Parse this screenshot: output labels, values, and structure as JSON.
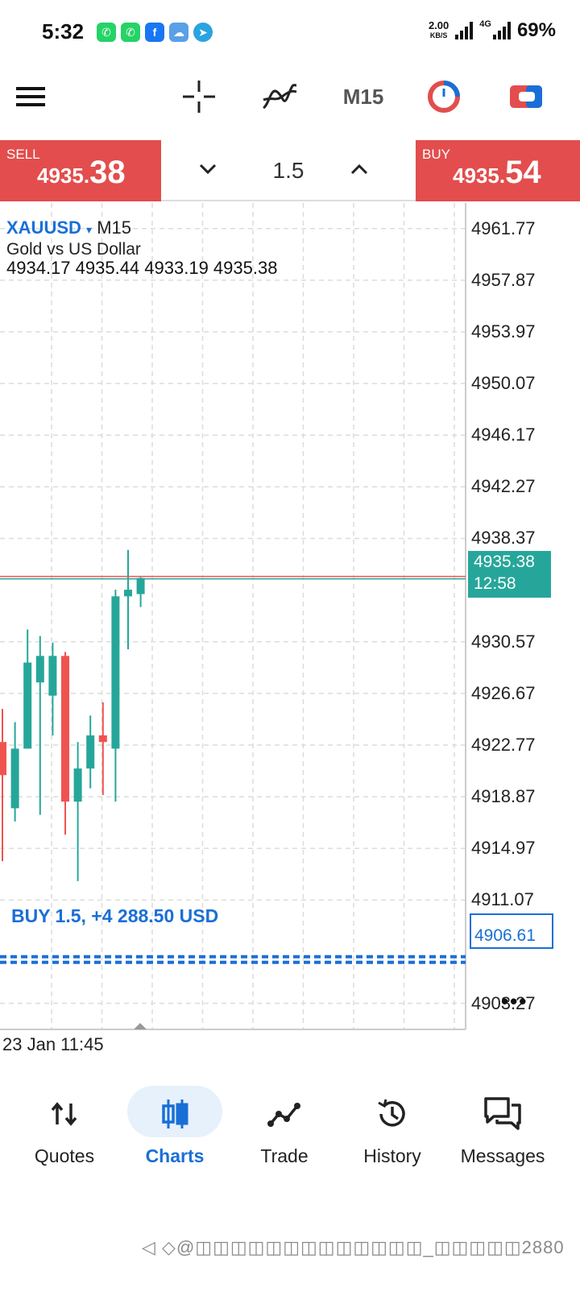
{
  "status_bar": {
    "time": "5:32",
    "net_speed_value": "2.00",
    "net_speed_unit": "KB/S",
    "network_type": "4G",
    "battery": "69%"
  },
  "toolbar": {
    "timeframe": "M15"
  },
  "trade": {
    "sell_label": "SELL",
    "sell_price_main": "4935.",
    "sell_price_big": "38",
    "buy_label": "BUY",
    "buy_price_main": "4935.",
    "buy_price_big": "54",
    "volume": "1.5"
  },
  "chart": {
    "symbol": "XAUUSD",
    "symbol_arrow": "▾",
    "timeframe": "M15",
    "description": "Gold vs US Dollar",
    "ohlc": "4934.17 4935.44 4933.19 4935.38",
    "y_labels": [
      "4961.77",
      "4957.87",
      "4953.97",
      "4950.07",
      "4946.17",
      "4942.27",
      "4938.37",
      "4930.57",
      "4926.67",
      "4922.77",
      "4918.87",
      "4914.97",
      "4911.07",
      "4903.27"
    ],
    "current_price": "4935.38",
    "countdown": "12:58",
    "position_price": "4906.61",
    "position_label": "BUY 1.5, +4 288.50 USD",
    "time_label": "23 Jan 11:45",
    "more": "•••"
  },
  "chart_data": {
    "type": "candlestick",
    "y_range": [
      4901.3,
      4963.7
    ],
    "current_price_line": 4935.38,
    "position_line": 4906.61,
    "candles": [
      {
        "open": 4923.0,
        "high": 4925.5,
        "low": 4914.0,
        "close": 4920.5
      },
      {
        "open": 4918.0,
        "high": 4924.5,
        "low": 4917.0,
        "close": 4922.5
      },
      {
        "open": 4922.5,
        "high": 4931.5,
        "low": 4922.5,
        "close": 4929.0
      },
      {
        "open": 4927.5,
        "high": 4931.0,
        "low": 4917.5,
        "close": 4929.5
      },
      {
        "open": 4926.5,
        "high": 4930.5,
        "low": 4923.5,
        "close": 4929.5
      },
      {
        "open": 4929.5,
        "high": 4929.8,
        "low": 4916.0,
        "close": 4918.5
      },
      {
        "open": 4918.5,
        "high": 4923.0,
        "low": 4912.5,
        "close": 4921.0
      },
      {
        "open": 4921.0,
        "high": 4925.0,
        "low": 4919.5,
        "close": 4923.5
      },
      {
        "open": 4923.5,
        "high": 4926.0,
        "low": 4919.0,
        "close": 4923.0
      },
      {
        "open": 4922.5,
        "high": 4934.5,
        "low": 4918.5,
        "close": 4934.0
      },
      {
        "open": 4934.0,
        "high": 4937.5,
        "low": 4930.0,
        "close": 4934.5
      },
      {
        "open": 4934.17,
        "high": 4935.44,
        "low": 4933.19,
        "close": 4935.38
      }
    ]
  },
  "nav": {
    "items": [
      {
        "label": "Quotes"
      },
      {
        "label": "Charts"
      },
      {
        "label": "Trade"
      },
      {
        "label": "History"
      },
      {
        "label": "Messages"
      }
    ]
  },
  "colors": {
    "up": "#26a69a",
    "down": "#ef5350",
    "accent": "#1a6fd6",
    "sell_buy_bg": "#e34d4d"
  },
  "watermark": "◁ ◇@◫◫◫◫◫◫◫◫◫◫◫◫◫_◫◫◫◫◫2880"
}
